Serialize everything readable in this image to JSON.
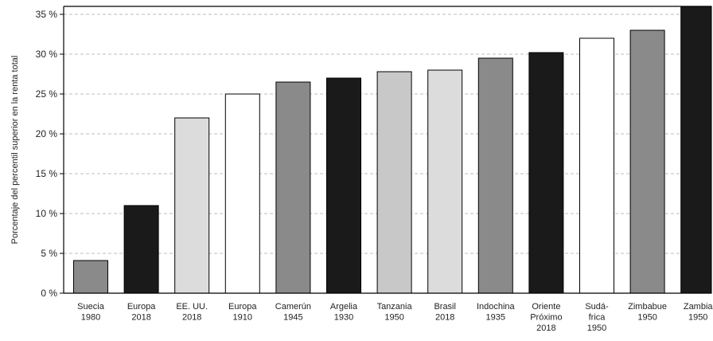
{
  "chart_data": {
    "type": "bar",
    "ylabel": "Porcentaje del percentil superior en la renta total",
    "ylim": [
      0,
      36
    ],
    "yticks": [
      0,
      5,
      10,
      15,
      20,
      25,
      30,
      35
    ],
    "ytick_labels": [
      "0 %",
      "5 %",
      "10 %",
      "15 %",
      "20 %",
      "25 %",
      "30 %",
      "35 %"
    ],
    "grid": true,
    "categories": [
      [
        "Suecia",
        "1980"
      ],
      [
        "Europa",
        "2018"
      ],
      [
        "EE. UU.",
        "2018"
      ],
      [
        "Europa",
        "1910"
      ],
      [
        "Camerún",
        "1945"
      ],
      [
        "Argelia",
        "1930"
      ],
      [
        "Tanzania",
        "1950"
      ],
      [
        "Brasil",
        "2018"
      ],
      [
        "Indochina",
        "1935"
      ],
      [
        "Oriente",
        "Próximo",
        "2018"
      ],
      [
        "Sudá-",
        "frica",
        "1950"
      ],
      [
        "Zimbabue",
        "1950"
      ],
      [
        "Zambia",
        "1950"
      ]
    ],
    "values": [
      4.1,
      11.0,
      22.0,
      25.0,
      26.5,
      27.0,
      27.8,
      28.0,
      29.5,
      30.2,
      32.0,
      33.0,
      36.0
    ],
    "colors": [
      "#8a8a8a",
      "#1a1a1a",
      "#dcdcdc",
      "#ffffff",
      "#8a8a8a",
      "#1a1a1a",
      "#c8c8c8",
      "#dcdcdc",
      "#8a8a8a",
      "#1a1a1a",
      "#ffffff",
      "#8a8a8a",
      "#1a1a1a"
    ]
  }
}
